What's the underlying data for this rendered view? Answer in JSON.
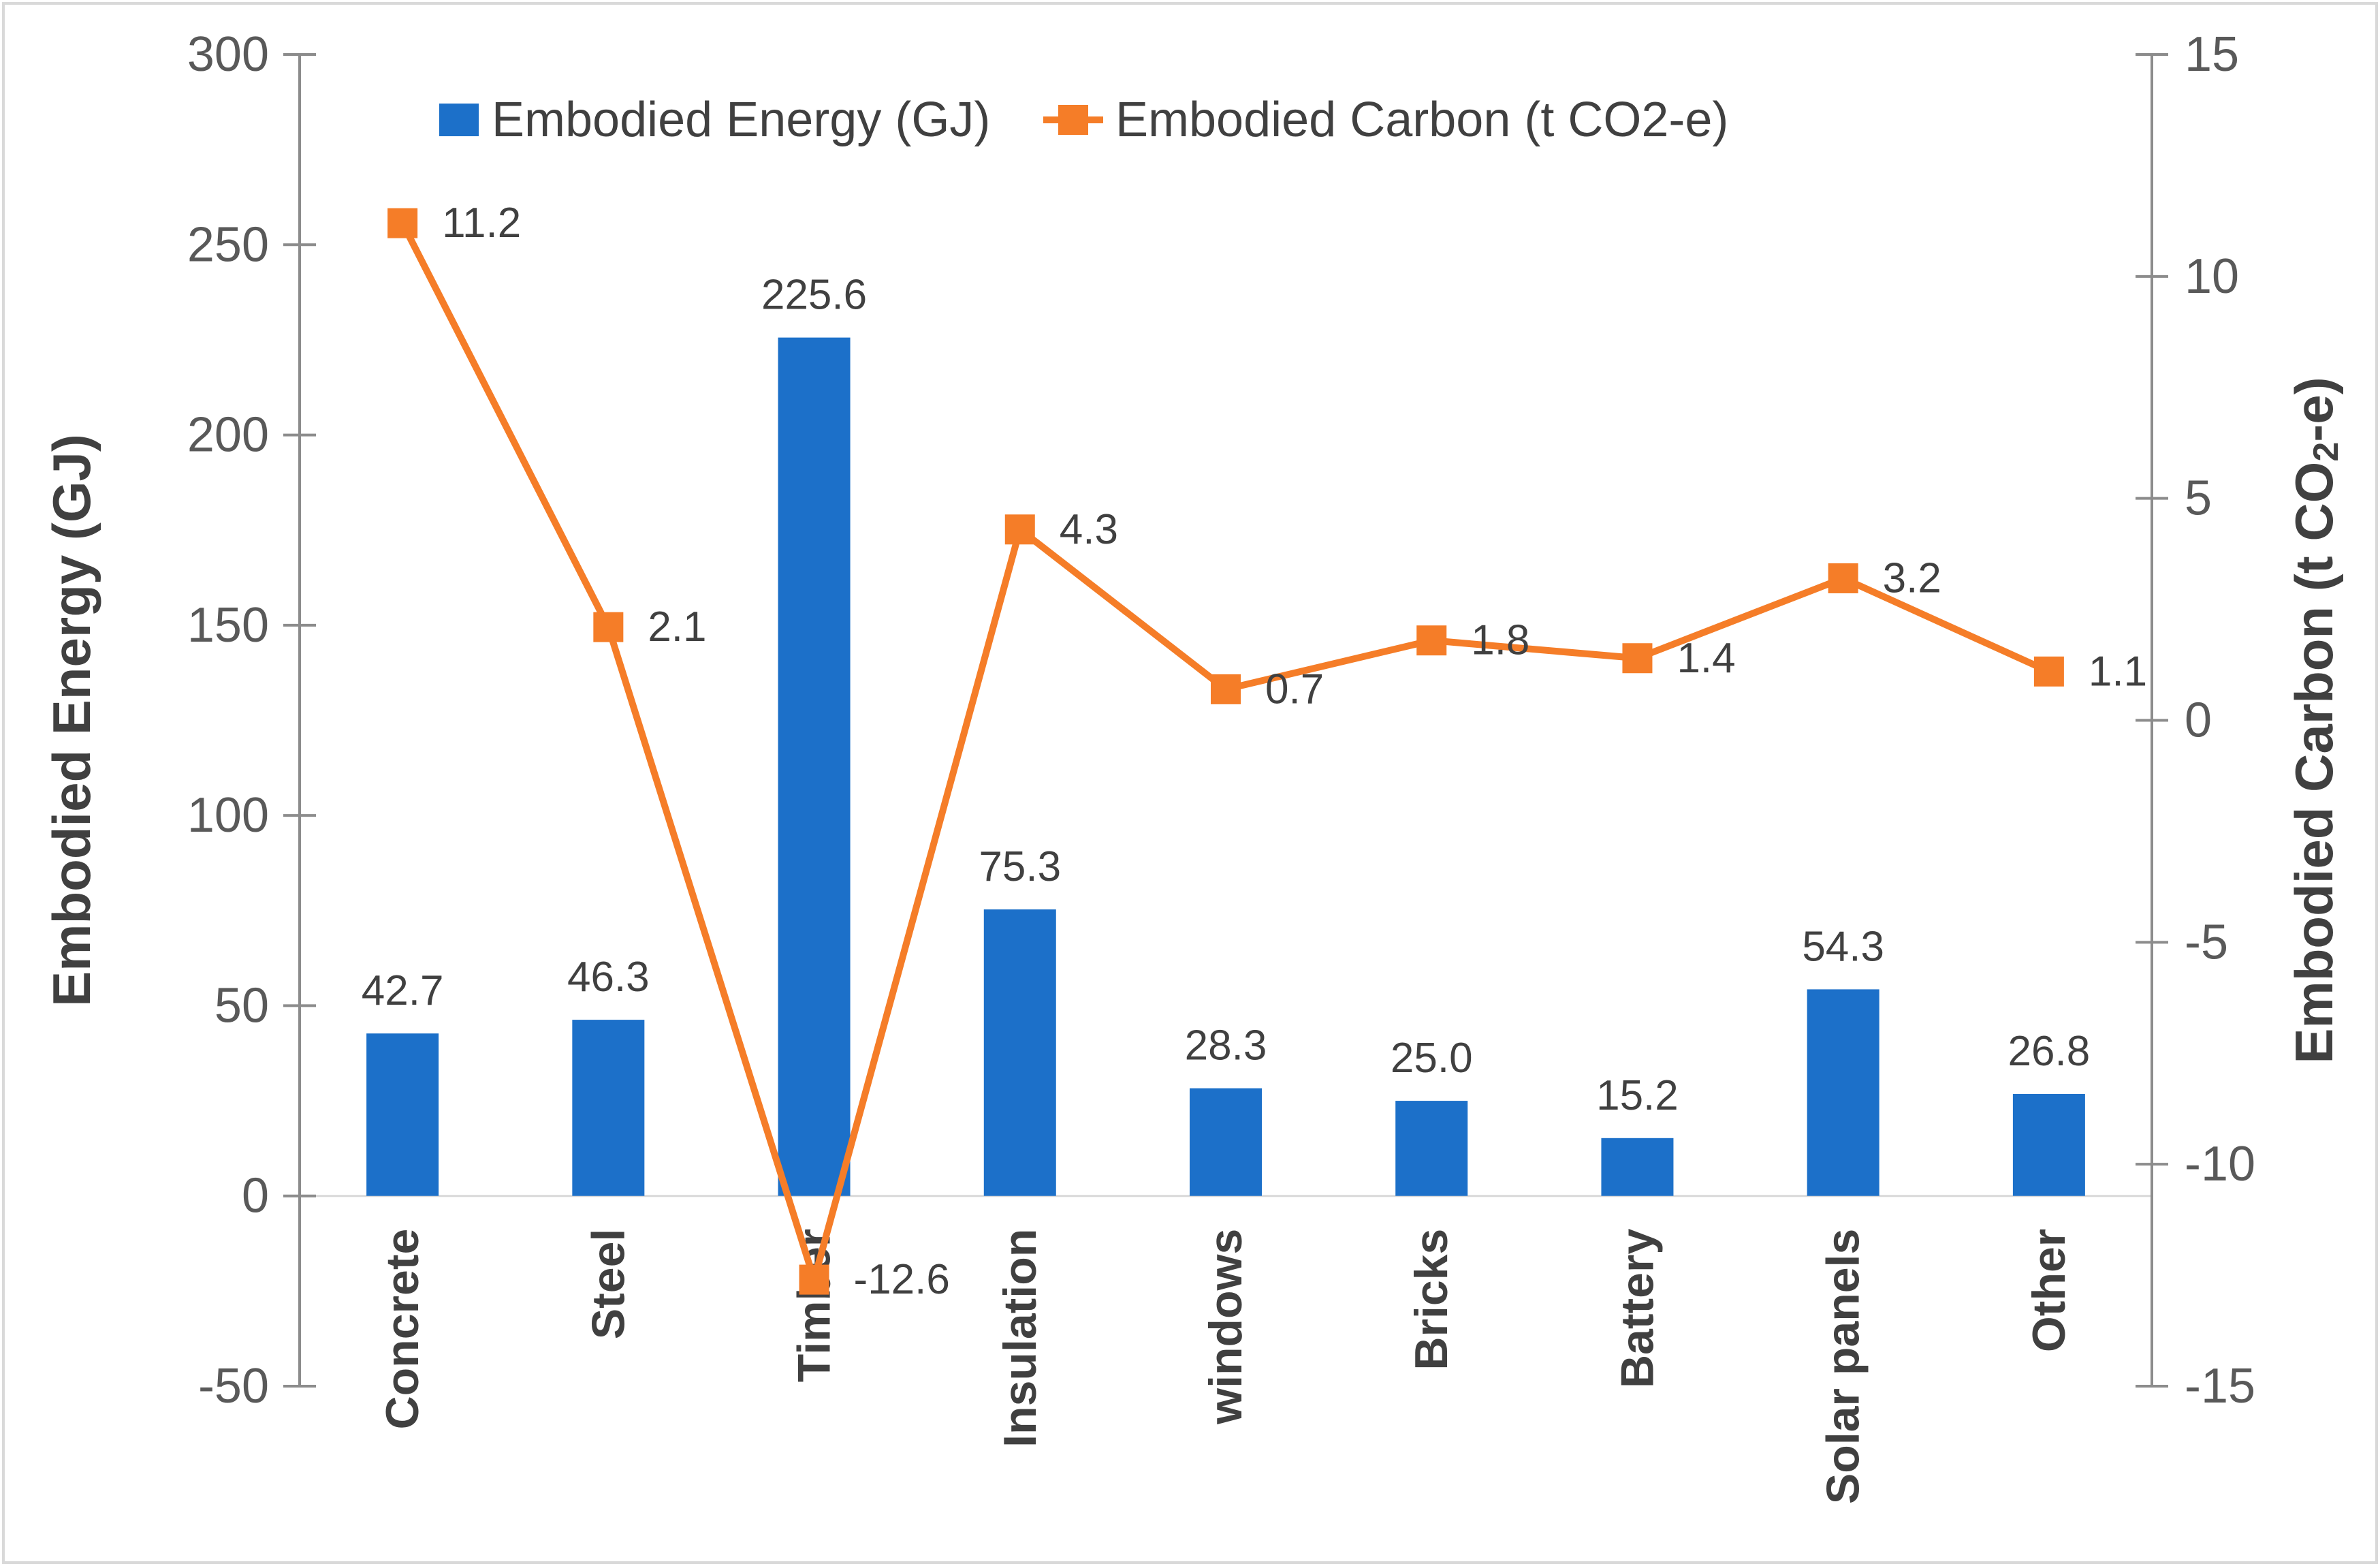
{
  "figure": {
    "background": "#ffffff",
    "border_color": "#d9d9d9"
  },
  "legend": {
    "position": "top",
    "items": [
      {
        "label": "Embodied Energy (GJ)",
        "marker": "square",
        "color": "#1c70c9"
      },
      {
        "label": "Embodied Carbon (t CO2-e)",
        "marker": "line-square",
        "color": "#f57d28"
      }
    ]
  },
  "chart_data": {
    "type": "combo-bar-line",
    "categories": [
      "Concrete",
      "Steel",
      "Timber",
      "Insulation",
      "windows",
      "Bricks",
      "Battery",
      "Solar panels",
      "Other"
    ],
    "series": [
      {
        "name": "Embodied Energy (GJ)",
        "type": "bar",
        "axis": "left",
        "color": "#1c70c9",
        "values": [
          42.7,
          46.3,
          225.6,
          75.3,
          28.3,
          25.0,
          15.2,
          54.3,
          26.8
        ],
        "labels": [
          "42.7",
          "46.3",
          "225.6",
          "75.3",
          "28.3",
          "25.0",
          "15.2",
          "54.3",
          "26.8"
        ]
      },
      {
        "name": "Embodied Carbon (t CO2-e)",
        "type": "line",
        "axis": "right",
        "color": "#f57d28",
        "marker": "square",
        "values": [
          11.2,
          2.1,
          -12.6,
          4.3,
          0.7,
          1.8,
          1.4,
          3.2,
          1.1
        ],
        "labels": [
          "11.2",
          "2.1",
          "-12.6",
          "4.3",
          "0.7",
          "1.8",
          "1.4",
          "3.2",
          "1.1"
        ]
      }
    ],
    "left_axis": {
      "title": "Embodied Energy (GJ)",
      "min": -50,
      "max": 300,
      "step": 50,
      "tick_labels": [
        "300",
        "250",
        "200",
        "150",
        "100",
        "50",
        "0",
        "-50"
      ]
    },
    "right_axis": {
      "title_prefix": "Embodied Carbon (t CO",
      "title_sub": "2",
      "title_suffix": "-e)",
      "min": -15,
      "max": 15,
      "step": 5,
      "tick_labels": [
        "15",
        "10",
        "5",
        "0",
        "-5",
        "-10",
        "-15"
      ]
    },
    "grid": "zero-line-only",
    "legend_position": "top-center",
    "style": {
      "axis_line_color": "#8c8c8c",
      "tick_label_color": "#595959",
      "data_label_color": "#404040",
      "category_label_color": "#404040",
      "axis_title_color": "#404040",
      "legend_text_color": "#404040",
      "zero_gridline_color": "#d9d9d9"
    }
  }
}
